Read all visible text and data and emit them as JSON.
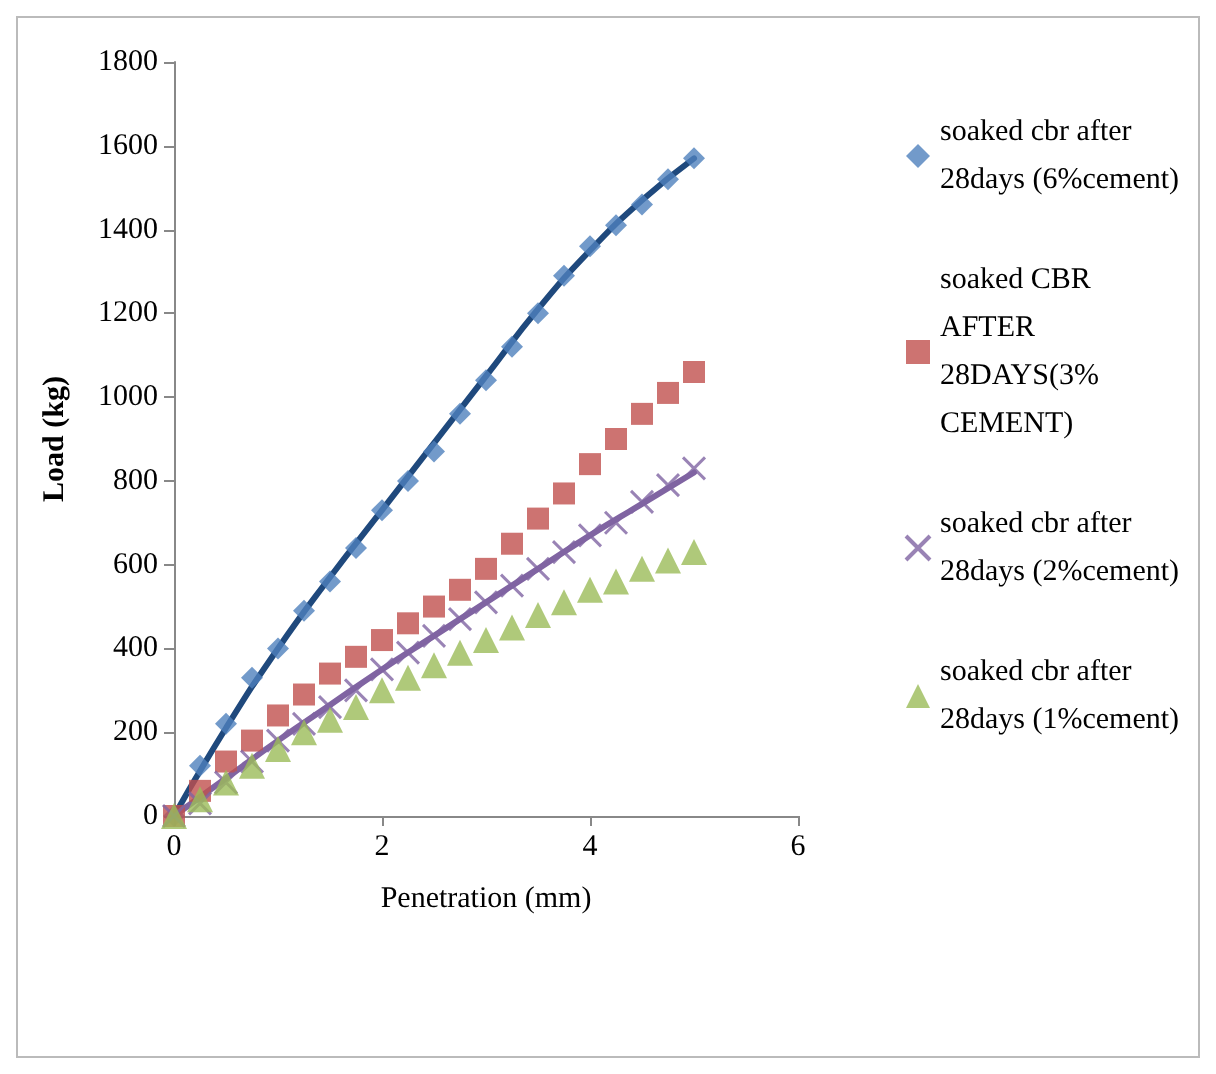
{
  "chart_data": {
    "type": "scatter",
    "xlabel": "Penetration (mm)",
    "ylabel": "Load (kg)",
    "xlim": [
      0,
      6
    ],
    "xticks": [
      0,
      2,
      4,
      6
    ],
    "ylim": [
      0,
      1800
    ],
    "yticks": [
      0,
      200,
      400,
      600,
      800,
      1000,
      1200,
      1400,
      1600,
      1800
    ],
    "grid": false,
    "legend": "right",
    "series": [
      {
        "name": "soaked cbr after 28days (6%cement)",
        "color": "#4f81bd",
        "marker": "diamond",
        "x": [
          0,
          0.25,
          0.5,
          0.75,
          1,
          1.25,
          1.5,
          1.75,
          2,
          2.25,
          2.5,
          2.75,
          3,
          3.25,
          3.5,
          3.75,
          4,
          4.25,
          4.5,
          4.75,
          5
        ],
        "values": [
          0,
          120,
          220,
          330,
          400,
          490,
          560,
          640,
          730,
          800,
          870,
          960,
          1040,
          1120,
          1200,
          1290,
          1360,
          1410,
          1460,
          1520,
          1570
        ]
      },
      {
        "name": "soaked CBR AFTER 28DAYS(3% CEMENT)",
        "color": "#c0504d",
        "marker": "square",
        "x": [
          0,
          0.25,
          0.5,
          0.75,
          1,
          1.25,
          1.5,
          1.75,
          2,
          2.25,
          2.5,
          2.75,
          3,
          3.25,
          3.5,
          3.75,
          4,
          4.25,
          4.5,
          4.75,
          5
        ],
        "values": [
          0,
          60,
          130,
          180,
          240,
          290,
          340,
          380,
          420,
          460,
          500,
          540,
          590,
          650,
          710,
          770,
          840,
          900,
          960,
          1010,
          1060
        ]
      },
      {
        "name": "soaked cbr after 28days (2%cement)",
        "color": "#8064a2",
        "marker": "cross",
        "x": [
          0,
          0.25,
          0.5,
          0.75,
          1,
          1.25,
          1.5,
          1.75,
          2,
          2.25,
          2.5,
          2.75,
          3,
          3.25,
          3.5,
          3.75,
          4,
          4.25,
          4.5,
          4.75,
          5
        ],
        "values": [
          0,
          30,
          80,
          130,
          180,
          220,
          260,
          300,
          350,
          390,
          430,
          470,
          510,
          550,
          590,
          630,
          670,
          700,
          750,
          790,
          830
        ]
      },
      {
        "name": "soaked cbr after 28days (1%cement)",
        "color": "#9bbb59",
        "marker": "triangle",
        "x": [
          0,
          0.25,
          0.5,
          0.75,
          1,
          1.25,
          1.5,
          1.75,
          2,
          2.25,
          2.5,
          2.75,
          3,
          3.25,
          3.5,
          3.75,
          4,
          4.25,
          4.5,
          4.75,
          5
        ],
        "values": [
          0,
          40,
          80,
          120,
          160,
          200,
          230,
          260,
          300,
          330,
          360,
          390,
          420,
          450,
          480,
          510,
          540,
          560,
          590,
          610,
          630
        ]
      },
      {
        "type": "line",
        "marker": "none",
        "color": "#1f497d",
        "x": [
          0,
          0.5,
          1,
          1.5,
          2,
          2.5,
          3,
          3.5,
          4,
          4.5,
          5
        ],
        "values": [
          0,
          210,
          400,
          570,
          730,
          890,
          1050,
          1210,
          1350,
          1470,
          1570
        ]
      },
      {
        "type": "line",
        "marker": "none",
        "color": "#8064a2",
        "x": [
          0,
          0.5,
          1,
          1.5,
          2,
          2.5,
          3,
          3.5,
          4,
          4.5,
          5
        ],
        "values": [
          0,
          90,
          180,
          265,
          350,
          430,
          510,
          590,
          670,
          745,
          820
        ]
      }
    ]
  }
}
